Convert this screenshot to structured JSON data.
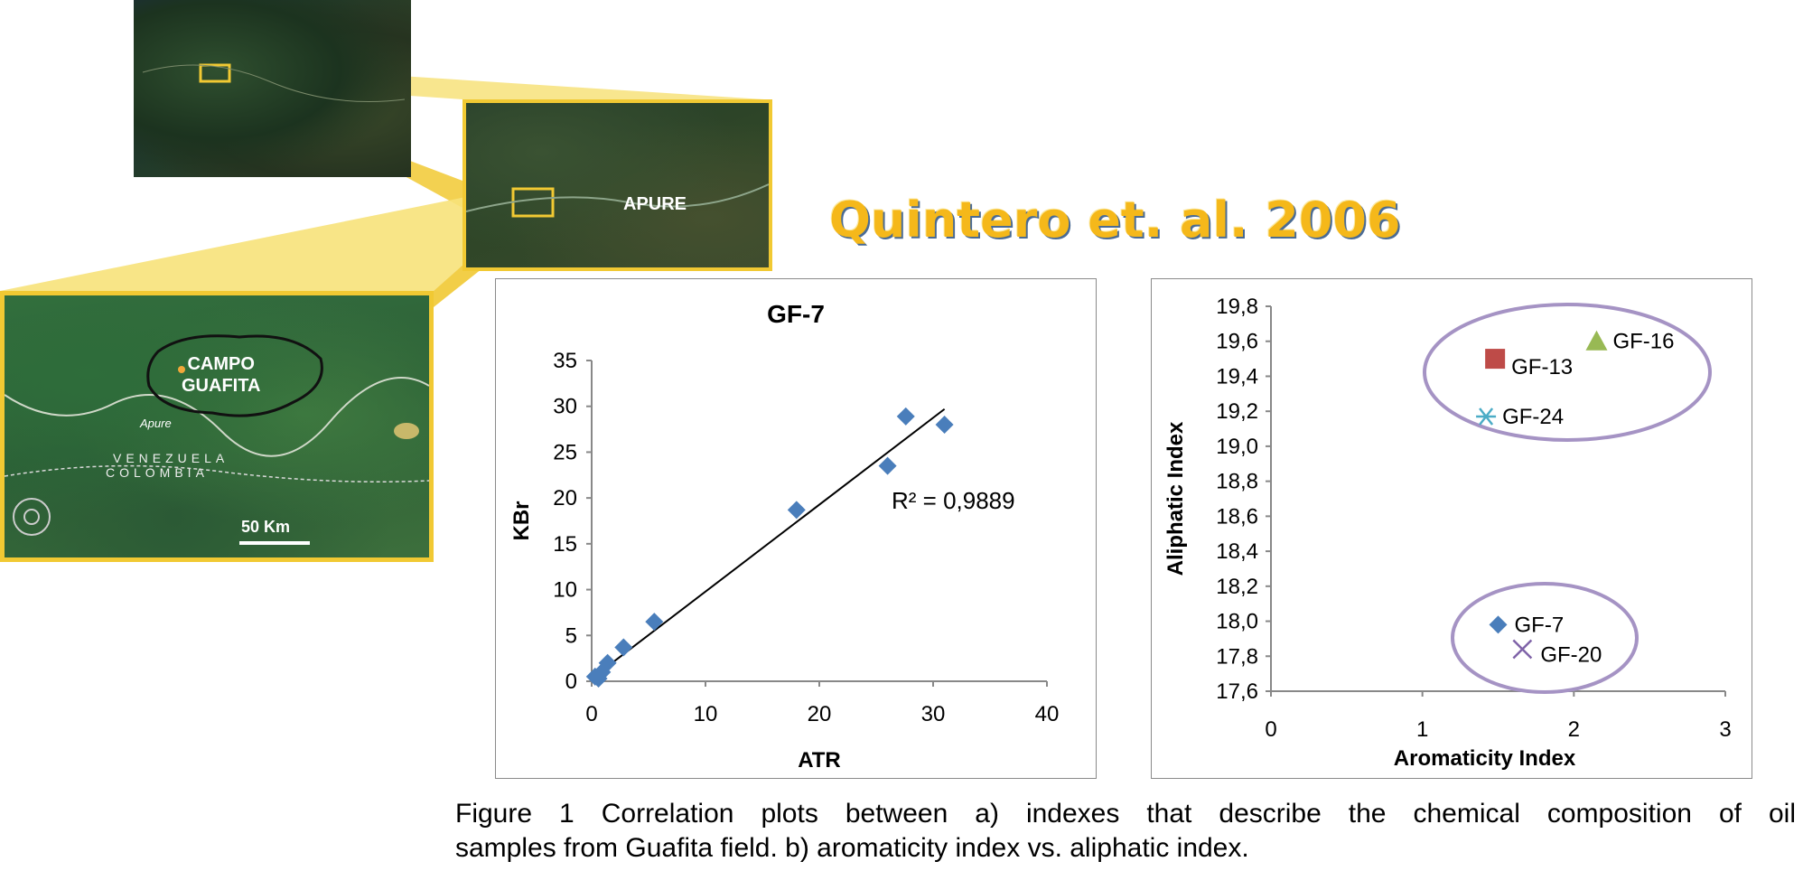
{
  "map": {
    "region_label": "APURE",
    "field_label_line1": "CAMPO",
    "field_label_line2": "GUAFITA",
    "river_label": "Apure",
    "country_label_1": "VENEZUELA",
    "country_label_2": "COLOMBIA",
    "scale_label": "50 Km",
    "colors": {
      "highlight": "#f1c933",
      "highlight_fill": "#f7e27a"
    }
  },
  "citation": "Quintero et. al. 2006",
  "chart_data": [
    {
      "type": "scatter",
      "title": "GF-7",
      "xlabel": "ATR",
      "ylabel": "KBr",
      "xlim": [
        0,
        40
      ],
      "ylim": [
        0,
        35
      ],
      "xticks": [
        0,
        10,
        20,
        30,
        40
      ],
      "yticks": [
        0,
        5,
        10,
        15,
        20,
        25,
        30,
        35
      ],
      "points": [
        {
          "x": 0.3,
          "y": 0.5
        },
        {
          "x": 0.6,
          "y": 0.3
        },
        {
          "x": 0.9,
          "y": 1.0
        },
        {
          "x": 1.4,
          "y": 2.0
        },
        {
          "x": 2.8,
          "y": 3.7
        },
        {
          "x": 5.5,
          "y": 6.5
        },
        {
          "x": 18.0,
          "y": 18.7
        },
        {
          "x": 26.0,
          "y": 23.5
        },
        {
          "x": 27.6,
          "y": 28.9
        },
        {
          "x": 31.0,
          "y": 28.0
        }
      ],
      "trendline": {
        "x": [
          0,
          31
        ],
        "y": [
          0.3,
          29.7
        ]
      },
      "annotation": "R² = 0,9889",
      "marker_color": "#4a7ebb",
      "grid": false
    },
    {
      "type": "scatter",
      "xlabel": "Aromaticity Index",
      "ylabel": "Aliphatic Index",
      "xlim": [
        0,
        3
      ],
      "ylim": [
        17.6,
        19.8
      ],
      "xticks": [
        "0",
        "1",
        "2",
        "3"
      ],
      "yticks": [
        "17,6",
        "17,8",
        "18,0",
        "18,2",
        "18,4",
        "18,6",
        "18,8",
        "19,0",
        "19,2",
        "19,4",
        "19,6",
        "19,8"
      ],
      "series": [
        {
          "name": "GF-7",
          "marker": "diamond",
          "color": "#4a7ebb",
          "x": 1.5,
          "y": 17.98
        },
        {
          "name": "GF-20",
          "marker": "x",
          "color": "#7f63a8",
          "x": 1.66,
          "y": 17.84
        },
        {
          "name": "GF-13",
          "marker": "square",
          "color": "#be4b48",
          "x": 1.48,
          "y": 19.5
        },
        {
          "name": "GF-16",
          "marker": "triangle",
          "color": "#98b954",
          "x": 2.15,
          "y": 19.6
        },
        {
          "name": "GF-24",
          "marker": "star",
          "color": "#4bacc6",
          "x": 1.42,
          "y": 19.17
        }
      ],
      "ellipse_color": "#a593c4",
      "grid": false
    }
  ],
  "caption": {
    "line1": "Figure 1 Correlation plots between a) indexes that describe the chemical composition of oil",
    "line2": "samples from Guafita field. b) aromaticity index vs. aliphatic index."
  }
}
